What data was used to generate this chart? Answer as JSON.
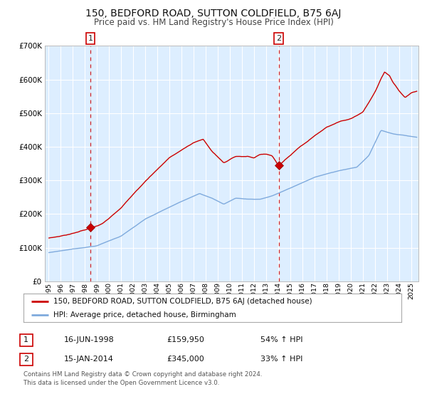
{
  "title": "150, BEDFORD ROAD, SUTTON COLDFIELD, B75 6AJ",
  "subtitle": "Price paid vs. HM Land Registry's House Price Index (HPI)",
  "bg_color": "#ddeeff",
  "fig_bg_color": "#ffffff",
  "grid_color": "#ffffff",
  "sale1_date_num": 1998.46,
  "sale1_price": 159950,
  "sale2_date_num": 2014.04,
  "sale2_price": 345000,
  "ylim": [
    0,
    700000
  ],
  "yticks": [
    0,
    100000,
    200000,
    300000,
    400000,
    500000,
    600000,
    700000
  ],
  "legend_line1": "150, BEDFORD ROAD, SUTTON COLDFIELD, B75 6AJ (detached house)",
  "legend_line2": "HPI: Average price, detached house, Birmingham",
  "table_row1": [
    "1",
    "16-JUN-1998",
    "£159,950",
    "54% ↑ HPI"
  ],
  "table_row2": [
    "2",
    "15-JAN-2014",
    "£345,000",
    "33% ↑ HPI"
  ],
  "footnote1": "Contains HM Land Registry data © Crown copyright and database right 2024.",
  "footnote2": "This data is licensed under the Open Government Licence v3.0.",
  "red_line_color": "#cc0000",
  "blue_line_color": "#7faadd",
  "marker_color": "#cc0000",
  "marker_edge_color": "#880000"
}
